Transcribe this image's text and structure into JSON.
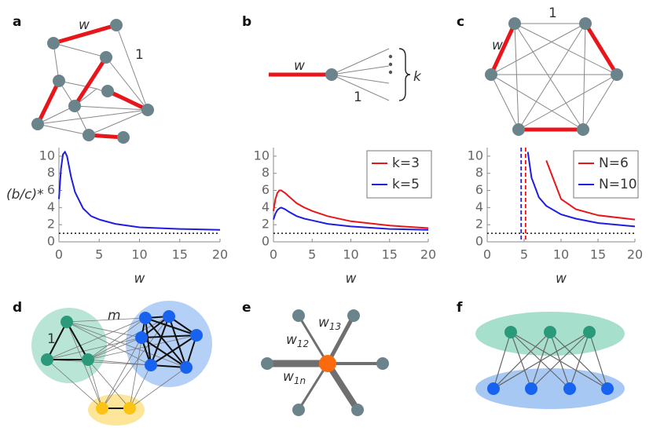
{
  "chart_data": [
    {
      "type": "line",
      "y_label": "(b/c)*",
      "x_label": "w",
      "x": [
        0,
        0.25,
        0.5,
        0.75,
        1,
        1.5,
        2,
        3,
        4,
        5,
        7,
        10,
        15,
        20
      ],
      "series": [
        {
          "color": "#1e1ee0",
          "values": [
            5,
            8.5,
            10.2,
            10.5,
            10,
            7.6,
            5.8,
            3.9,
            3.0,
            2.6,
            2.1,
            1.7,
            1.5,
            1.4
          ]
        }
      ],
      "xlim": [
        0,
        20
      ],
      "ylim": [
        0,
        11
      ],
      "xticks": [
        0,
        5,
        10,
        15,
        20
      ],
      "yticks": [
        0,
        2,
        4,
        6,
        8,
        10
      ],
      "hline": 1
    },
    {
      "type": "line",
      "x_label": "w",
      "x": [
        0,
        0.25,
        0.5,
        0.75,
        1,
        1.5,
        2,
        3,
        4,
        5,
        7,
        10,
        15,
        20
      ],
      "series": [
        {
          "name": "k=3",
          "color": "#e8161a",
          "values": [
            3.6,
            5.0,
            5.7,
            6.0,
            6.0,
            5.7,
            5.3,
            4.5,
            4.0,
            3.6,
            3.0,
            2.4,
            1.9,
            1.6
          ]
        },
        {
          "name": "k=5",
          "color": "#1e1ee0",
          "values": [
            2.6,
            3.3,
            3.7,
            3.9,
            4.0,
            3.8,
            3.5,
            3.0,
            2.7,
            2.5,
            2.1,
            1.8,
            1.5,
            1.4
          ]
        }
      ],
      "xlim": [
        0,
        20
      ],
      "ylim": [
        0,
        11
      ],
      "xticks": [
        0,
        5,
        10,
        15,
        20
      ],
      "yticks": [
        0,
        2,
        4,
        6,
        8,
        10
      ],
      "hline": 1,
      "legend": "upper right"
    },
    {
      "type": "line",
      "x_label": "w",
      "x": [
        5,
        5.5,
        6,
        7,
        8,
        10,
        12,
        15,
        20
      ],
      "series": [
        {
          "name": "N=6",
          "color": "#e8161a",
          "values": [
            null,
            null,
            null,
            null,
            9.5,
            5.0,
            3.8,
            3.1,
            2.6
          ],
          "threshold": 5.2
        },
        {
          "name": "N=10",
          "color": "#1e1ee0",
          "values": [
            null,
            10.5,
            7.5,
            5.2,
            4.2,
            3.2,
            2.7,
            2.2,
            1.8
          ],
          "threshold": 4.6
        }
      ],
      "xlim": [
        0,
        20
      ],
      "ylim": [
        0,
        11
      ],
      "xticks": [
        0,
        5,
        10,
        15,
        20
      ],
      "yticks": [
        0,
        2,
        4,
        6,
        8,
        10
      ],
      "hline": 1,
      "legend": "upper right"
    }
  ],
  "panels": {
    "labels": [
      "a",
      "b",
      "c",
      "d",
      "e",
      "f"
    ],
    "a": [
      "w",
      "1"
    ],
    "b": [
      "w",
      "1",
      "k"
    ],
    "c": [
      "1",
      "w"
    ],
    "d": [
      "m",
      "1"
    ],
    "e": [
      {
        "symbol": "w",
        "index": "12"
      },
      {
        "symbol": "w",
        "index": "13"
      },
      {
        "symbol": "w",
        "index": "1n"
      }
    ]
  }
}
